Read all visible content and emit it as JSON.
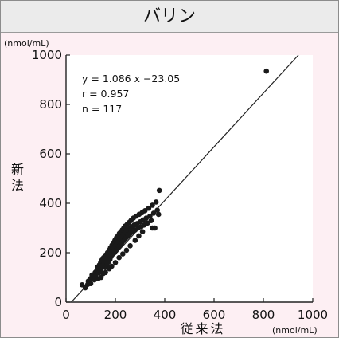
{
  "title": "バリン",
  "colors": {
    "panel_bg": "#fdeff3",
    "title_bg": "#ebebeb",
    "plot_bg": "#ffffff",
    "marker": "#1a1a1a"
  },
  "chart_data": {
    "type": "scatter",
    "title": "バリン",
    "xlabel": "従来法",
    "ylabel": "新法",
    "x_unit": "(nmol/mL)",
    "y_unit": "(nmol/mL)",
    "xlim": [
      0,
      1000
    ],
    "ylim": [
      0,
      1000
    ],
    "xticks": [
      0,
      200,
      400,
      600,
      800,
      1000
    ],
    "yticks": [
      0,
      200,
      400,
      600,
      800,
      1000
    ],
    "grid": false,
    "annotations": [
      "y = 1.086 x −23.05",
      "r = 0.957",
      "n = 117"
    ],
    "regression": {
      "slope": 1.086,
      "intercept": -23.05
    },
    "points": [
      [
        65,
        70
      ],
      [
        78,
        58
      ],
      [
        90,
        85
      ],
      [
        98,
        95
      ],
      [
        105,
        110
      ],
      [
        110,
        100
      ],
      [
        118,
        120
      ],
      [
        120,
        105
      ],
      [
        125,
        130
      ],
      [
        128,
        142
      ],
      [
        132,
        118
      ],
      [
        135,
        150
      ],
      [
        138,
        128
      ],
      [
        140,
        160
      ],
      [
        142,
        138
      ],
      [
        145,
        170
      ],
      [
        147,
        148
      ],
      [
        150,
        115
      ],
      [
        152,
        180
      ],
      [
        154,
        158
      ],
      [
        156,
        172
      ],
      [
        158,
        140
      ],
      [
        160,
        190
      ],
      [
        162,
        165
      ],
      [
        164,
        178
      ],
      [
        166,
        150
      ],
      [
        168,
        200
      ],
      [
        170,
        185
      ],
      [
        172,
        162
      ],
      [
        174,
        210
      ],
      [
        176,
        195
      ],
      [
        178,
        172
      ],
      [
        180,
        220
      ],
      [
        182,
        205
      ],
      [
        184,
        185
      ],
      [
        186,
        230
      ],
      [
        188,
        212
      ],
      [
        190,
        195
      ],
      [
        192,
        240
      ],
      [
        194,
        220
      ],
      [
        196,
        200
      ],
      [
        198,
        250
      ],
      [
        200,
        228
      ],
      [
        202,
        208
      ],
      [
        204,
        260
      ],
      [
        206,
        238
      ],
      [
        208,
        215
      ],
      [
        210,
        268
      ],
      [
        212,
        245
      ],
      [
        214,
        225
      ],
      [
        216,
        278
      ],
      [
        218,
        252
      ],
      [
        220,
        232
      ],
      [
        222,
        285
      ],
      [
        224,
        260
      ],
      [
        226,
        240
      ],
      [
        228,
        292
      ],
      [
        230,
        268
      ],
      [
        232,
        248
      ],
      [
        234,
        300
      ],
      [
        236,
        275
      ],
      [
        238,
        255
      ],
      [
        240,
        308
      ],
      [
        242,
        282
      ],
      [
        245,
        262
      ],
      [
        248,
        315
      ],
      [
        250,
        290
      ],
      [
        252,
        270
      ],
      [
        255,
        322
      ],
      [
        258,
        298
      ],
      [
        260,
        278
      ],
      [
        263,
        330
      ],
      [
        266,
        305
      ],
      [
        270,
        285
      ],
      [
        273,
        340
      ],
      [
        276,
        312
      ],
      [
        280,
        292
      ],
      [
        284,
        348
      ],
      [
        288,
        318
      ],
      [
        292,
        300
      ],
      [
        296,
        355
      ],
      [
        300,
        325
      ],
      [
        304,
        305
      ],
      [
        308,
        362
      ],
      [
        312,
        332
      ],
      [
        316,
        312
      ],
      [
        320,
        370
      ],
      [
        325,
        340
      ],
      [
        330,
        320
      ],
      [
        335,
        380
      ],
      [
        340,
        348
      ],
      [
        345,
        330
      ],
      [
        350,
        392
      ],
      [
        355,
        360
      ],
      [
        360,
        300
      ],
      [
        365,
        405
      ],
      [
        370,
        372
      ],
      [
        375,
        355
      ],
      [
        378,
        452
      ],
      [
        142,
        100
      ],
      [
        160,
        120
      ],
      [
        200,
        160
      ],
      [
        175,
        135
      ],
      [
        230,
        195
      ],
      [
        215,
        180
      ],
      [
        245,
        210
      ],
      [
        260,
        228
      ],
      [
        280,
        250
      ],
      [
        295,
        268
      ],
      [
        310,
        285
      ],
      [
        185,
        145
      ],
      [
        130,
        95
      ],
      [
        100,
        75
      ],
      [
        88,
        72
      ],
      [
        115,
        90
      ],
      [
        350,
        300
      ],
      [
        812,
        935
      ]
    ]
  }
}
